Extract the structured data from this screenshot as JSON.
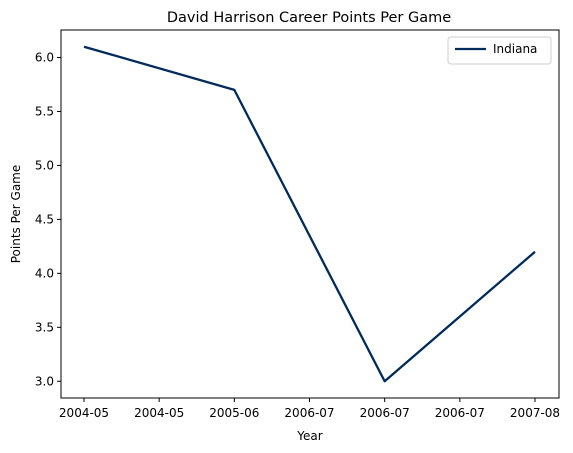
{
  "chart_data": {
    "type": "line",
    "title": "David Harrison  Career Points Per Game",
    "xlabel": "Year",
    "ylabel": "Points Per Game",
    "x_ticks": [
      "2004-05",
      "2004-05",
      "2005-06",
      "2006-07",
      "2006-07",
      "2006-07",
      "2007-08"
    ],
    "y_ticks": [
      3.0,
      3.5,
      4.0,
      4.5,
      5.0,
      5.5,
      6.0
    ],
    "ylim": [
      2.845,
      6.255
    ],
    "grid": false,
    "legend_position": "top-right",
    "series": [
      {
        "name": "Indiana",
        "color": "#002b5c",
        "points": [
          {
            "x": "2004-05",
            "y": 6.1
          },
          {
            "x": "2005-06",
            "y": 5.7
          },
          {
            "x": "2006-07",
            "y": 3.0
          },
          {
            "x": "2007-08",
            "y": 4.2
          }
        ]
      }
    ]
  }
}
